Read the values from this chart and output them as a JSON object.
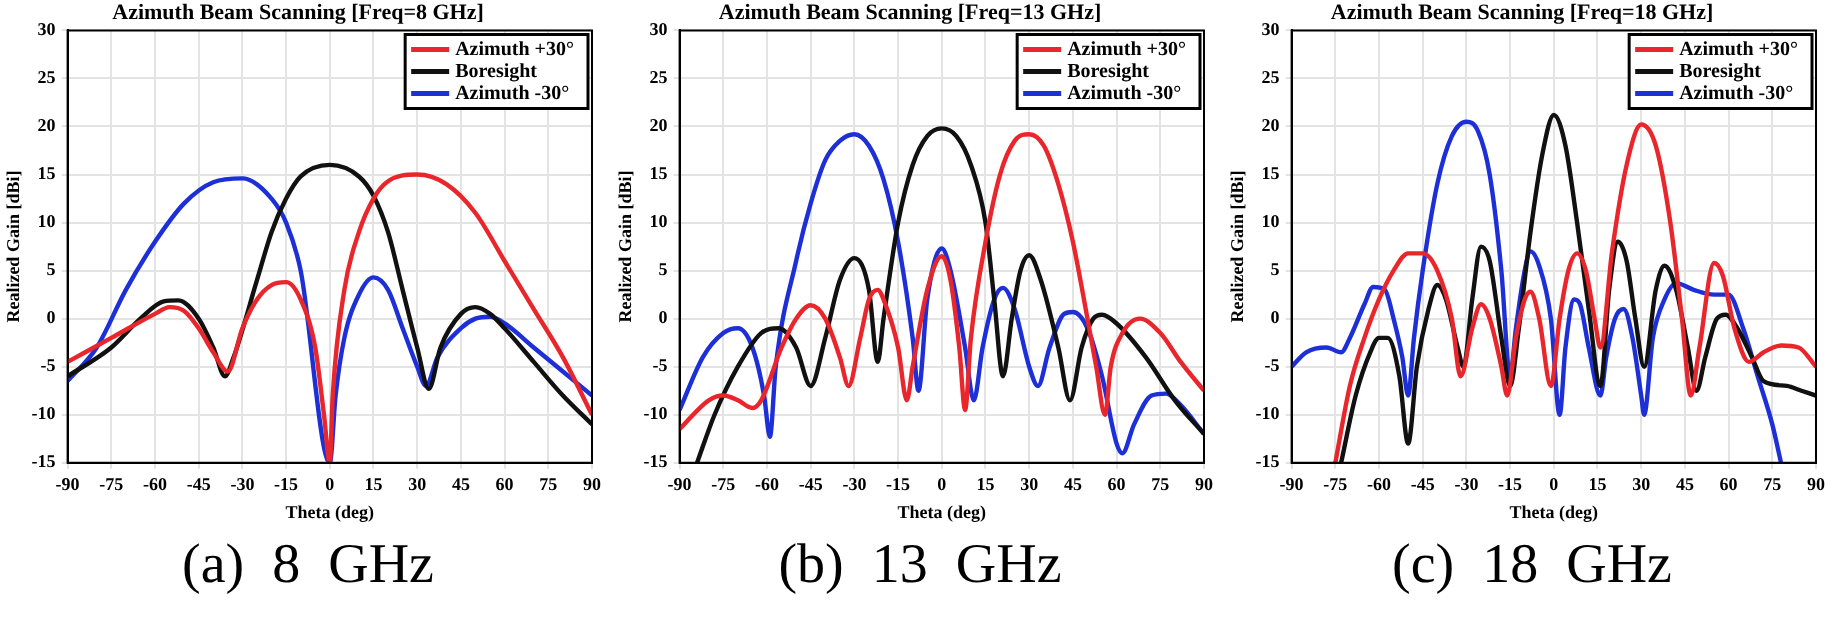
{
  "chart_data": [
    {
      "type": "line",
      "title": "Azimuth Beam Scanning [Freq=8 GHz]",
      "xlabel": "Theta (deg)",
      "ylabel": "Realized Gain [dBi]",
      "annotations": [
        "(a)  8  GHz"
      ],
      "xlim": [
        -90,
        90
      ],
      "xticks": [
        -90,
        -75,
        -60,
        -45,
        -30,
        -15,
        0,
        15,
        30,
        45,
        60,
        75,
        90
      ],
      "ylim": [
        -15,
        30
      ],
      "yticks": [
        -15,
        -10,
        -5,
        0,
        5,
        10,
        15,
        20,
        25,
        30
      ],
      "grid": true,
      "legend": "top right",
      "series": [
        {
          "name": "Azimuth +30°",
          "color": "#e8262b",
          "x": [
            -90,
            -75,
            -60,
            -55,
            -50,
            -45,
            -40,
            -35,
            -30,
            -25,
            -20,
            -15,
            -10,
            -5,
            -2,
            0,
            1,
            5,
            10,
            15,
            20,
            30,
            40,
            50,
            60,
            70,
            80,
            90
          ],
          "values": [
            -4.5,
            -2,
            0.5,
            1.2,
            0.8,
            -1,
            -3.5,
            -5.5,
            -1,
            2,
            3.5,
            3.8,
            2,
            -3,
            -10,
            -15,
            -8,
            3,
            9,
            12.5,
            14.3,
            15,
            14,
            11,
            6,
            1,
            -4,
            -10
          ]
        },
        {
          "name": "Boresight",
          "color": "#111111",
          "x": [
            -90,
            -75,
            -65,
            -57,
            -52,
            -45,
            -40,
            -36,
            -33,
            -25,
            -20,
            -15,
            -10,
            0,
            10,
            15,
            20,
            25,
            30,
            34,
            38,
            45,
            50,
            55,
            60,
            70,
            80,
            90
          ],
          "values": [
            -6,
            -3,
            0,
            1.8,
            1.9,
            0,
            -3,
            -6,
            -4,
            4,
            9,
            12.5,
            14.8,
            16,
            14.8,
            12.8,
            9,
            3,
            -3,
            -7.3,
            -3,
            0.5,
            1.2,
            0.5,
            -1,
            -4.5,
            -8,
            -11
          ]
        },
        {
          "name": "Azimuth -30°",
          "color": "#1d2fd6",
          "x": [
            -90,
            -80,
            -70,
            -60,
            -50,
            -40,
            -30,
            -20,
            -15,
            -10,
            0,
            2,
            5,
            10,
            15,
            20,
            25,
            30,
            33,
            37,
            45,
            50,
            55,
            60,
            70,
            80,
            90
          ],
          "values": [
            -6.5,
            -3,
            3,
            8,
            12,
            14.2,
            14.6,
            12.5,
            10,
            5,
            -15,
            -8,
            -2,
            2.5,
            4.3,
            3,
            -1,
            -5,
            -7,
            -4,
            -1,
            0,
            0.2,
            -0.5,
            -3,
            -5.5,
            -8
          ]
        }
      ]
    },
    {
      "type": "line",
      "title": "Azimuth Beam Scanning [Freq=13 GHz]",
      "xlabel": "Theta (deg)",
      "ylabel": "Realized Gain [dBi]",
      "annotations": [
        "(b)  13  GHz"
      ],
      "xlim": [
        -90,
        90
      ],
      "xticks": [
        -90,
        -75,
        -60,
        -45,
        -30,
        -15,
        0,
        15,
        30,
        45,
        60,
        75,
        90
      ],
      "ylim": [
        -15,
        30
      ],
      "yticks": [
        -15,
        -10,
        -5,
        0,
        5,
        10,
        15,
        20,
        25,
        30
      ],
      "grid": true,
      "legend": "top right",
      "series": [
        {
          "name": "Azimuth +30°",
          "color": "#e8262b",
          "x": [
            -90,
            -80,
            -75,
            -70,
            -65,
            -62,
            -55,
            -50,
            -45,
            -40,
            -35,
            -32,
            -28,
            -25,
            -22,
            -20,
            -15,
            -12,
            -10,
            -5,
            0,
            3,
            6,
            8,
            10,
            15,
            20,
            25,
            30,
            35,
            40,
            45,
            50,
            53,
            56,
            58,
            62,
            68,
            75,
            82,
            90
          ],
          "values": [
            -11.5,
            -8.5,
            -8,
            -8.5,
            -9.3,
            -8.5,
            -3,
            0,
            1.4,
            0,
            -4,
            -7,
            -2,
            2,
            3,
            2,
            -3,
            -8.5,
            -5,
            3,
            6.5,
            4,
            -3,
            -9.5,
            -2,
            8,
            15,
            18.5,
            19.2,
            18,
            14,
            8,
            0,
            -5,
            -10,
            -5,
            -1.5,
            0,
            -1.5,
            -4.5,
            -7.5
          ]
        },
        {
          "name": "Boresight",
          "color": "#111111",
          "x": [
            -84,
            -78,
            -70,
            -62,
            -56,
            -50,
            -45,
            -40,
            -35,
            -30,
            -25,
            -22,
            -20,
            -15,
            -10,
            -5,
            0,
            5,
            10,
            15,
            18,
            21,
            24,
            27,
            30,
            34,
            40,
            44,
            48,
            52,
            55,
            60,
            70,
            80,
            90
          ],
          "values": [
            -15,
            -10,
            -5,
            -1.5,
            -1,
            -3,
            -7,
            -2,
            4,
            6.3,
            3,
            -4.5,
            0,
            10,
            16,
            19,
            19.8,
            19,
            16,
            10,
            2,
            -6,
            0,
            5,
            6.6,
            4,
            -3,
            -8.5,
            -3,
            0,
            0.4,
            -0.5,
            -4,
            -8.5,
            -12
          ]
        },
        {
          "name": "Azimuth -30°",
          "color": "#1d2fd6",
          "x": [
            -90,
            -82,
            -75,
            -70,
            -65,
            -61,
            -59,
            -57,
            -50,
            -45,
            -40,
            -35,
            -30,
            -25,
            -20,
            -15,
            -10,
            -8,
            -5,
            0,
            3,
            8,
            11,
            14,
            18,
            21,
            25,
            30,
            33,
            37,
            42,
            45,
            50,
            55,
            60,
            62,
            66,
            72,
            77,
            82,
            90
          ],
          "values": [
            -9.5,
            -4,
            -1.5,
            -1,
            -3,
            -8,
            -12.3,
            -5,
            6,
            12,
            16.5,
            18.5,
            19.2,
            18,
            14.5,
            8,
            -2,
            -7.5,
            2,
            7.3,
            5,
            -3,
            -8.5,
            -3,
            2,
            3.2,
            1,
            -5,
            -7,
            -3,
            0.5,
            0.7,
            -1,
            -6,
            -13,
            -14,
            -11,
            -8,
            -7.8,
            -9,
            -12
          ]
        }
      ]
    },
    {
      "type": "line",
      "title": "Azimuth Beam Scanning [Freq=18 GHz]",
      "xlabel": "Theta (deg)",
      "ylabel": "Realized Gain [dBi]",
      "annotations": [
        "(c)  18  GHz"
      ],
      "xlim": [
        -90,
        90
      ],
      "xticks": [
        -90,
        -75,
        -60,
        -45,
        -30,
        -15,
        0,
        15,
        30,
        45,
        60,
        75,
        90
      ],
      "ylim": [
        -15,
        30
      ],
      "yticks": [
        -15,
        -10,
        -5,
        0,
        5,
        10,
        15,
        20,
        25,
        30
      ],
      "grid": true,
      "legend": "top right",
      "series": [
        {
          "name": "Azimuth +30°",
          "color": "#e8262b",
          "x": [
            -75,
            -70,
            -65,
            -60,
            -55,
            -50,
            -45,
            -40,
            -35,
            -32,
            -28,
            -25,
            -22,
            -18,
            -16,
            -13,
            -10,
            -8,
            -5,
            -1,
            2,
            5,
            8,
            11,
            14,
            16,
            20,
            25,
            30,
            35,
            40,
            44,
            47,
            50,
            55,
            58,
            62,
            67,
            72,
            78,
            84,
            90
          ],
          "values": [
            -15,
            -7,
            -2,
            2,
            5,
            6.8,
            6.8,
            5,
            0,
            -6,
            -1,
            1.5,
            0,
            -5,
            -8,
            -2,
            2,
            2.8,
            0,
            -7,
            0,
            5,
            6.8,
            5,
            0,
            -3,
            7,
            16,
            20.2,
            18,
            10,
            0,
            -8,
            -3,
            5.8,
            4.5,
            -1,
            -4.5,
            -3.5,
            -2.8,
            -3,
            -5
          ]
        },
        {
          "name": "Boresight",
          "color": "#111111",
          "x": [
            -73,
            -68,
            -63,
            -60,
            -57,
            -53,
            -50,
            -47,
            -43,
            -40,
            -37,
            -33,
            -31,
            -28,
            -25,
            -22,
            -18,
            -15,
            -12,
            -8,
            -4,
            0,
            4,
            8,
            12,
            16,
            19,
            22,
            25,
            28,
            31,
            35,
            38,
            42,
            46,
            49,
            52,
            56,
            59,
            63,
            68,
            72,
            80,
            85,
            90
          ],
          "values": [
            -15,
            -8,
            -3.5,
            -2,
            -2,
            -6,
            -13,
            -5,
            1,
            3.5,
            2,
            -3,
            -5,
            2,
            7.5,
            6,
            -2,
            -7,
            -1,
            9,
            17,
            21.2,
            18,
            10,
            1,
            -7,
            3,
            8,
            6,
            0,
            -5,
            3,
            5.5,
            3,
            -3,
            -7.5,
            -4,
            0,
            0.4,
            -1,
            -4,
            -6.5,
            -7,
            -7.5,
            -8
          ]
        },
        {
          "name": "Azimuth -30°",
          "color": "#1d2fd6",
          "x": [
            -90,
            -85,
            -78,
            -73,
            -70,
            -65,
            -62,
            -58,
            -55,
            -52,
            -50,
            -48,
            -45,
            -40,
            -35,
            -30,
            -26,
            -22,
            -18,
            -15,
            -13,
            -10,
            -8,
            -5,
            -1,
            2,
            4,
            7,
            9,
            12,
            16,
            18,
            21,
            24,
            27,
            30,
            31,
            34,
            38,
            42,
            48,
            55,
            60,
            65,
            70,
            75,
            78
          ],
          "values": [
            -5,
            -3.5,
            -3,
            -3.5,
            -2,
            1.5,
            3.3,
            3,
            0,
            -4,
            -8,
            -2,
            5,
            14,
            19,
            20.5,
            19.5,
            15,
            5,
            -6,
            -1,
            5,
            7,
            5.5,
            0,
            -10,
            -3,
            2,
            1.5,
            -3,
            -8,
            -4,
            0,
            1,
            -2,
            -8,
            -10,
            -2,
            2,
            3.7,
            3,
            2.5,
            2.5,
            -1,
            -6,
            -11,
            -15
          ]
        }
      ]
    }
  ]
}
